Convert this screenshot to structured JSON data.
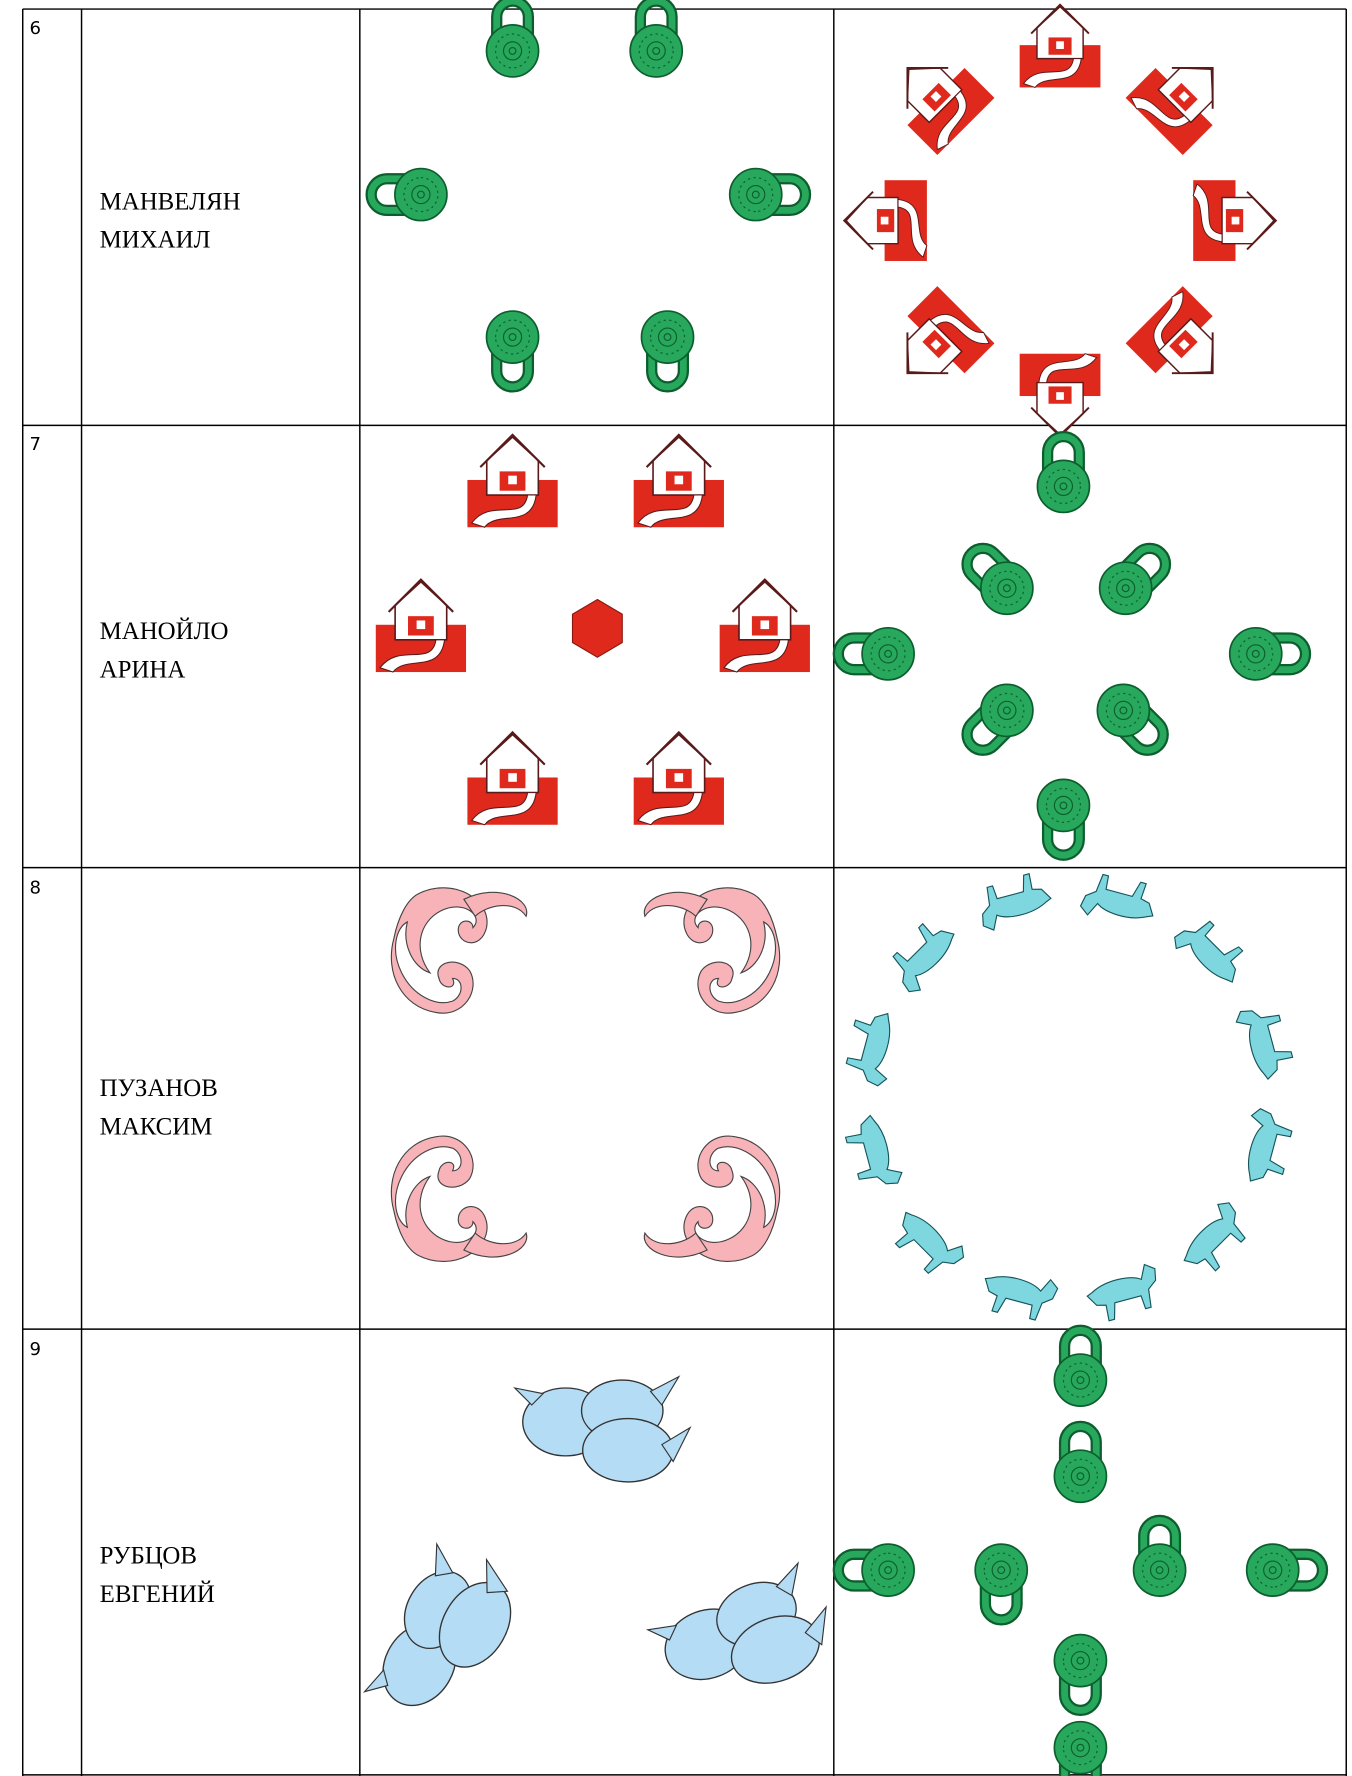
{
  "table": {
    "rows": [
      {
        "number": "6",
        "name": [
          "МАНВЕЛЯН",
          "МИХАИЛ"
        ]
      },
      {
        "number": "7",
        "name": [
          "МАНОЙЛО",
          "АРИНА"
        ]
      },
      {
        "number": "8",
        "name": [
          "ПУЗАНОВ",
          "МАКСИМ"
        ]
      },
      {
        "number": "9",
        "name": [
          "РУБЦОВ",
          "ЕВГЕНИЙ"
        ]
      }
    ]
  }
}
